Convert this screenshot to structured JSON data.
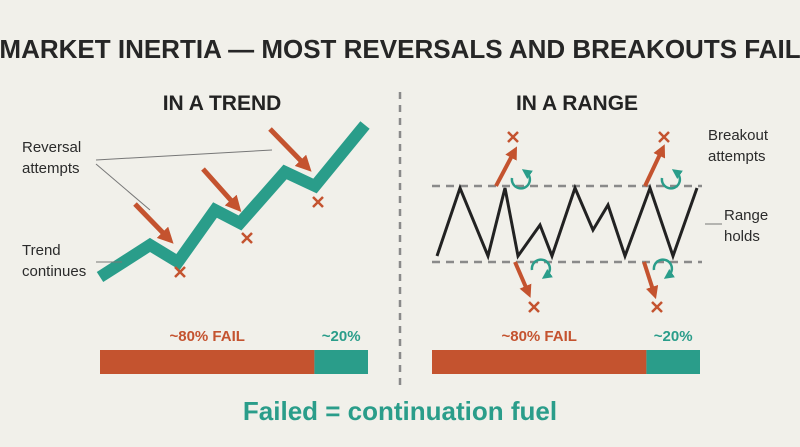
{
  "title": "MARKET INERTIA — MOST REVERSALS AND BREAKOUTS FAIL",
  "panels": [
    {
      "heading": "IN A TREND",
      "labels": [
        "Reversal",
        "attempts",
        "Trend",
        "continues"
      ],
      "bar": {
        "fail_label": "~80% FAIL",
        "fail": 80,
        "success_label": "~20%",
        "success": 20
      }
    },
    {
      "heading": "IN A RANGE",
      "labels": [
        "Breakout",
        "attempts",
        "Range",
        "holds"
      ],
      "bar": {
        "fail_label": "~80% FAIL",
        "fail": 80,
        "success_label": "~20%",
        "success": 20
      }
    }
  ],
  "footer": "Failed = continuation fuel"
}
